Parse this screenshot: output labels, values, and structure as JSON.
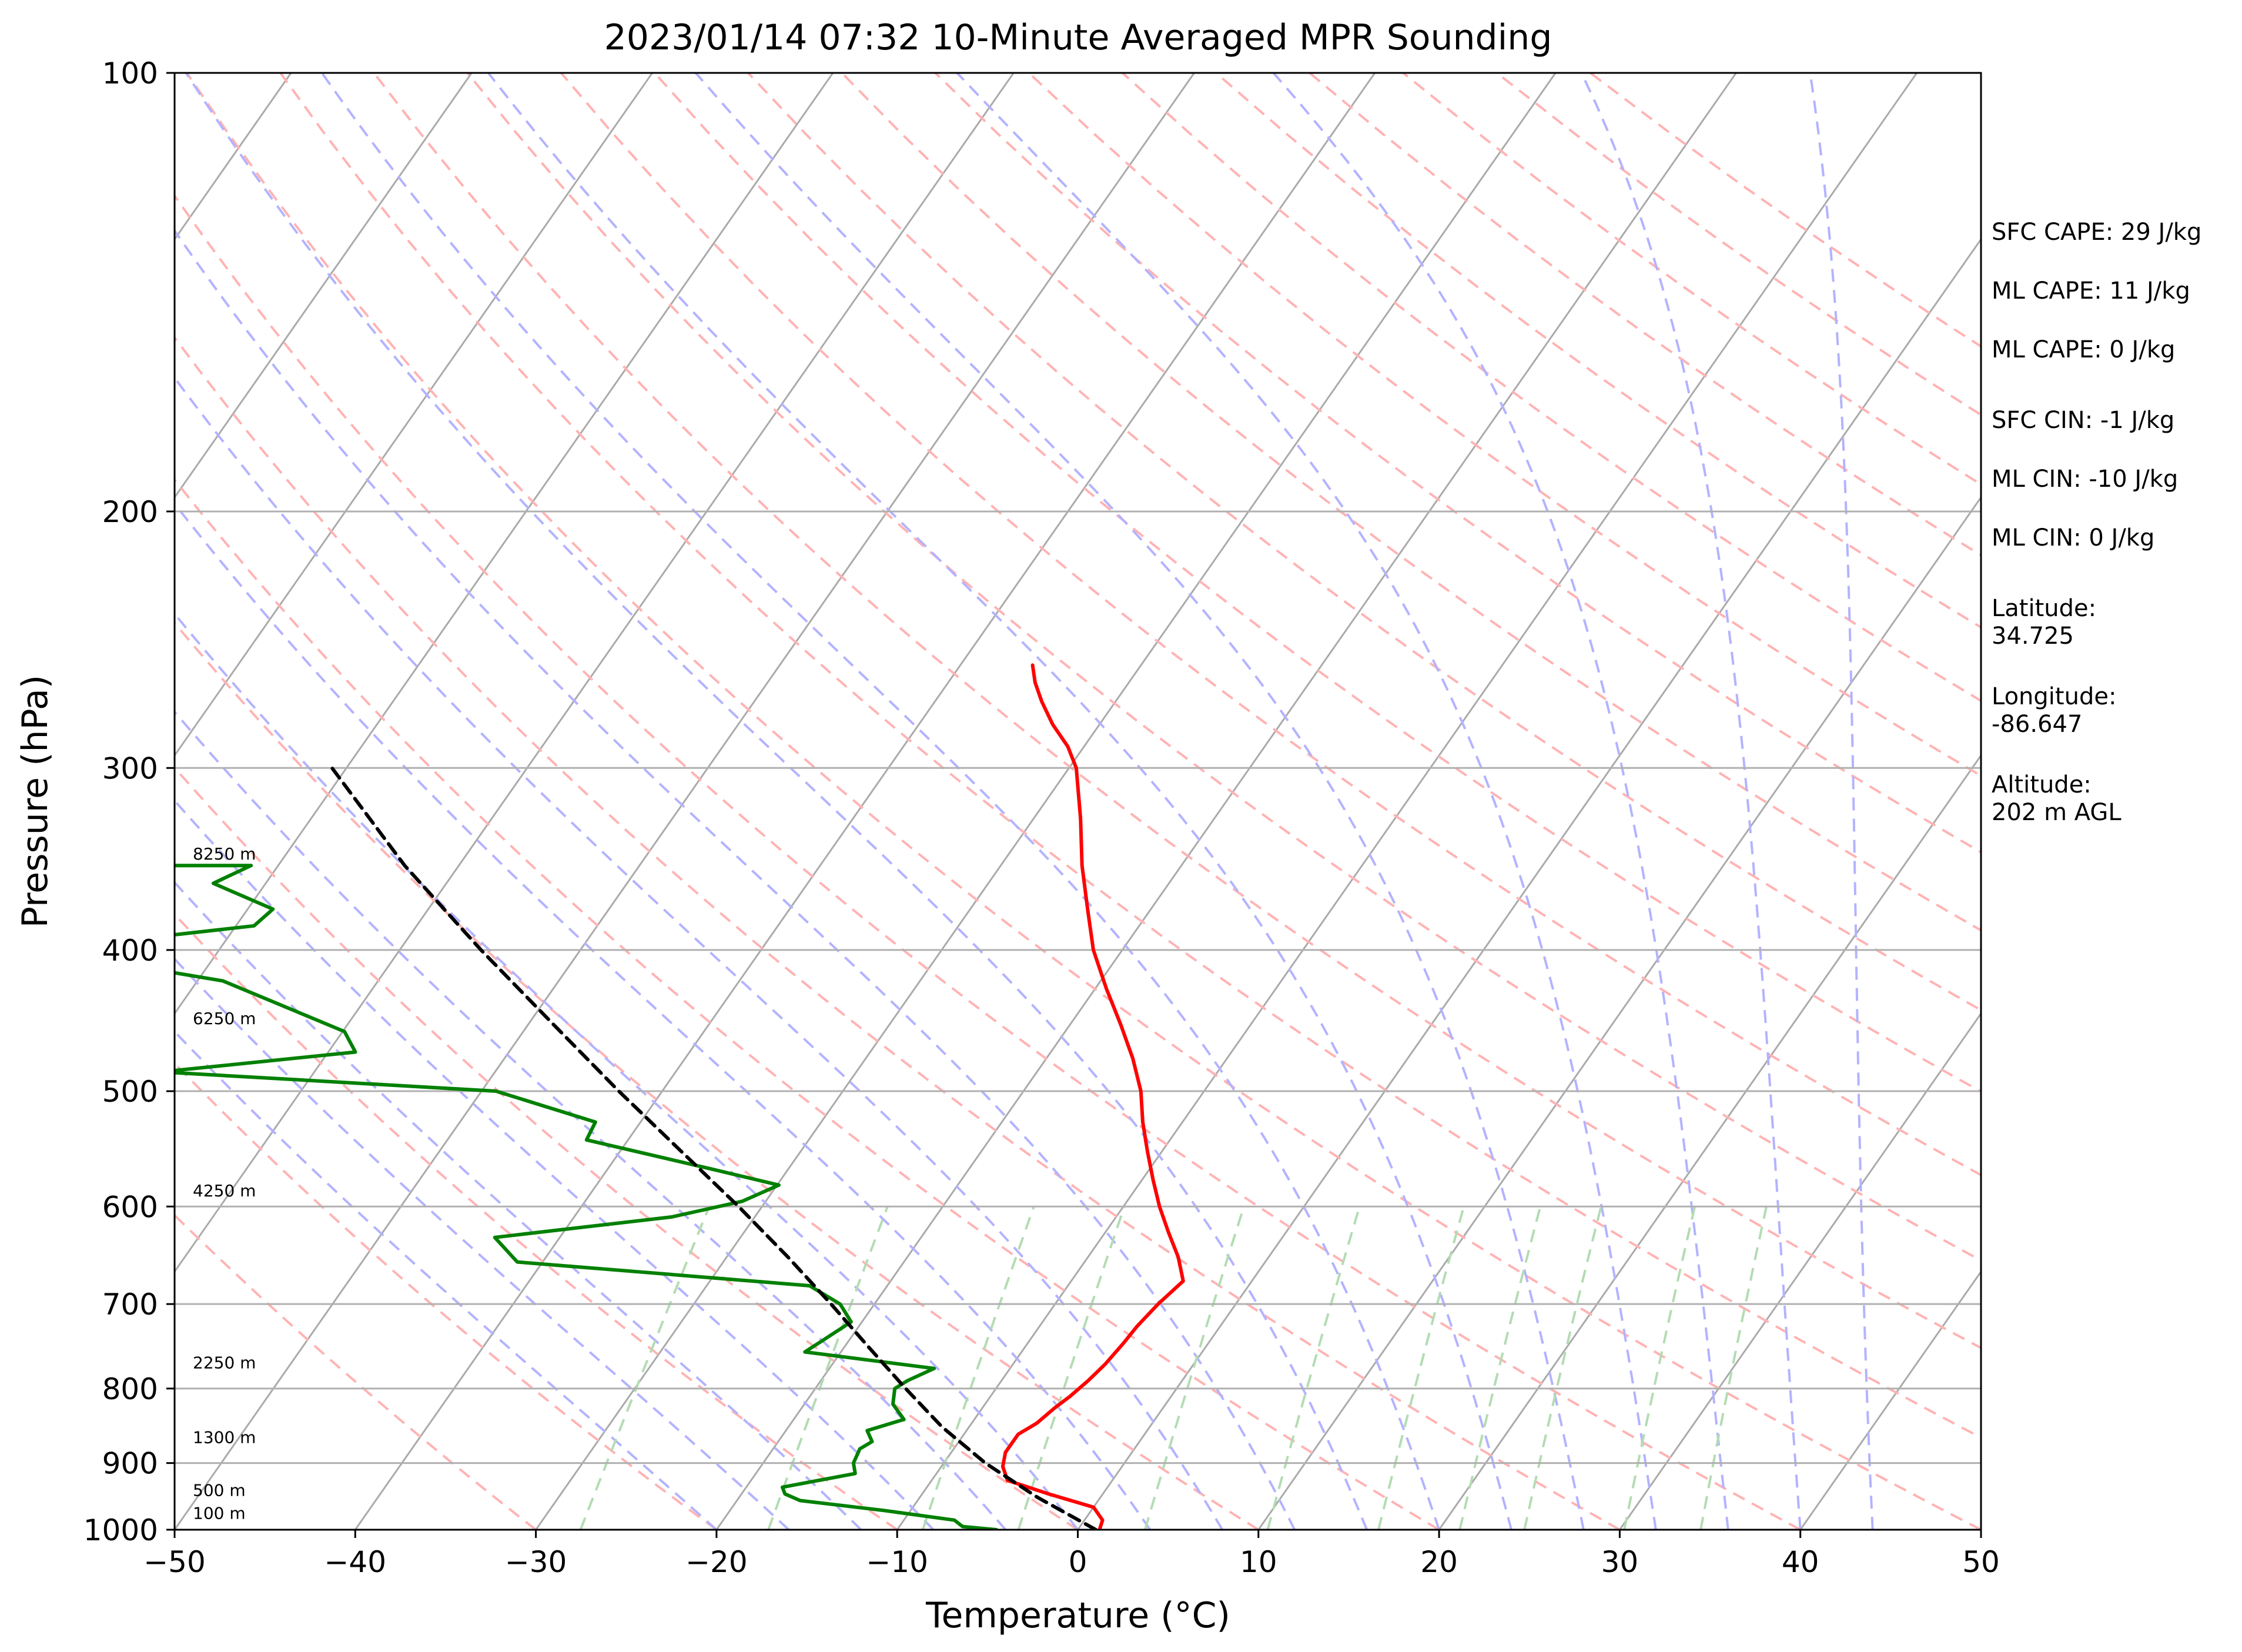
{
  "chart_data": {
    "type": "line",
    "title": "2023/01/14 07:32 10-Minute Averaged MPR Sounding",
    "xlabel": "Temperature (°C)",
    "ylabel": "Pressure (hPa)",
    "x_scale": "linear",
    "y_scale": "log",
    "y_inverted": true,
    "xlim": [
      -50,
      50
    ],
    "ylim": [
      1000,
      100
    ],
    "skew": true,
    "x_ticks": [
      "−50",
      "−40",
      "−30",
      "−20",
      "−10",
      "0",
      "10",
      "20",
      "30",
      "40",
      "50"
    ],
    "x_tick_values": [
      -50,
      -40,
      -30,
      -20,
      -10,
      0,
      10,
      20,
      30,
      40,
      50
    ],
    "y_ticks": [
      "1000",
      "900",
      "800",
      "700",
      "600",
      "500",
      "400",
      "300",
      "200",
      "100"
    ],
    "y_tick_values": [
      1000,
      900,
      800,
      700,
      600,
      500,
      400,
      300,
      200,
      100
    ],
    "grid": true,
    "series": [
      {
        "role": "temperature",
        "color": "#ff0000",
        "points": [
          {
            "p": 1000,
            "t": 1.2
          },
          {
            "p": 985,
            "t": 1.0
          },
          {
            "p": 965,
            "t": 0.0
          },
          {
            "p": 945,
            "t": -3.0
          },
          {
            "p": 925,
            "t": -5.8
          },
          {
            "p": 905,
            "t": -6.6
          },
          {
            "p": 885,
            "t": -7.0
          },
          {
            "p": 860,
            "t": -7.0
          },
          {
            "p": 845,
            "t": -6.4
          },
          {
            "p": 825,
            "t": -6.0
          },
          {
            "p": 810,
            "t": -5.6
          },
          {
            "p": 790,
            "t": -5.2
          },
          {
            "p": 770,
            "t": -4.9
          },
          {
            "p": 745,
            "t": -4.7
          },
          {
            "p": 725,
            "t": -4.6
          },
          {
            "p": 700,
            "t": -4.3
          },
          {
            "p": 675,
            "t": -3.8
          },
          {
            "p": 650,
            "t": -5.0
          },
          {
            "p": 625,
            "t": -6.5
          },
          {
            "p": 600,
            "t": -8.0
          },
          {
            "p": 575,
            "t": -9.4
          },
          {
            "p": 550,
            "t": -10.8
          },
          {
            "p": 525,
            "t": -12.2
          },
          {
            "p": 500,
            "t": -13.5
          },
          {
            "p": 475,
            "t": -15.2
          },
          {
            "p": 450,
            "t": -17.2
          },
          {
            "p": 425,
            "t": -19.4
          },
          {
            "p": 400,
            "t": -21.6
          },
          {
            "p": 375,
            "t": -23.5
          },
          {
            "p": 350,
            "t": -25.5
          },
          {
            "p": 325,
            "t": -27.4
          },
          {
            "p": 300,
            "t": -29.6
          },
          {
            "p": 290,
            "t": -30.9
          },
          {
            "p": 280,
            "t": -32.6
          },
          {
            "p": 270,
            "t": -34.1
          },
          {
            "p": 262,
            "t": -35.2
          },
          {
            "p": 255,
            "t": -36.0
          }
        ]
      },
      {
        "role": "dewpoint",
        "color": "#008000",
        "points": [
          {
            "p": 1000,
            "t": -4.5
          },
          {
            "p": 995,
            "t": -6.5
          },
          {
            "p": 985,
            "t": -7.2
          },
          {
            "p": 970,
            "t": -11.5
          },
          {
            "p": 955,
            "t": -16.5
          },
          {
            "p": 945,
            "t": -17.6
          },
          {
            "p": 935,
            "t": -18.0
          },
          {
            "p": 915,
            "t": -14.5
          },
          {
            "p": 900,
            "t": -15.0
          },
          {
            "p": 880,
            "t": -15.2
          },
          {
            "p": 870,
            "t": -14.8
          },
          {
            "p": 855,
            "t": -15.5
          },
          {
            "p": 840,
            "t": -13.9
          },
          {
            "p": 820,
            "t": -15.1
          },
          {
            "p": 800,
            "t": -15.6
          },
          {
            "p": 790,
            "t": -15.2
          },
          {
            "p": 775,
            "t": -14.2
          },
          {
            "p": 755,
            "t": -22.0
          },
          {
            "p": 740,
            "t": -21.4
          },
          {
            "p": 720,
            "t": -20.6
          },
          {
            "p": 700,
            "t": -21.9
          },
          {
            "p": 680,
            "t": -24.3
          },
          {
            "p": 655,
            "t": -41.4
          },
          {
            "p": 630,
            "t": -43.6
          },
          {
            "p": 610,
            "t": -34.6
          },
          {
            "p": 595,
            "t": -31.3
          },
          {
            "p": 580,
            "t": -29.9
          },
          {
            "p": 565,
            "t": -34.4
          },
          {
            "p": 540,
            "t": -42.3
          },
          {
            "p": 525,
            "t": -42.5
          },
          {
            "p": 500,
            "t": -49.2
          },
          {
            "p": 485,
            "t": -68.5
          },
          {
            "p": 470,
            "t": -58.5
          },
          {
            "p": 455,
            "t": -59.9
          },
          {
            "p": 420,
            "t": -68.6
          },
          {
            "p": 400,
            "t": -80.0
          },
          {
            "p": 385,
            "t": -69.0
          },
          {
            "p": 375,
            "t": -68.6
          },
          {
            "p": 360,
            "t": -72.9
          },
          {
            "p": 350,
            "t": -71.5
          },
          {
            "p": 350,
            "t": -89.7
          }
        ]
      },
      {
        "role": "parcel",
        "color": "#000000",
        "points": [
          {
            "p": 1000,
            "t": 1.0
          },
          {
            "p": 950,
            "t": -3.5
          },
          {
            "p": 900,
            "t": -7.7
          },
          {
            "p": 850,
            "t": -11.5
          },
          {
            "p": 800,
            "t": -15.0
          },
          {
            "p": 750,
            "t": -18.6
          },
          {
            "p": 700,
            "t": -22.4
          },
          {
            "p": 650,
            "t": -26.6
          },
          {
            "p": 600,
            "t": -31.3
          },
          {
            "p": 550,
            "t": -36.6
          },
          {
            "p": 500,
            "t": -42.4
          },
          {
            "p": 450,
            "t": -48.6
          },
          {
            "p": 400,
            "t": -55.5
          },
          {
            "p": 350,
            "t": -63.0
          },
          {
            "p": 300,
            "t": -70.8
          }
        ]
      }
    ],
    "height_labels": [
      {
        "p": 350,
        "text": "8250 m"
      },
      {
        "p": 454,
        "text": "6250 m"
      },
      {
        "p": 596,
        "text": "4250 m"
      },
      {
        "p": 782,
        "text": "2250 m"
      },
      {
        "p": 880,
        "text": "1300 m"
      },
      {
        "p": 957,
        "text": "500 m"
      },
      {
        "p": 992,
        "text": "100 m"
      }
    ],
    "background_lines": {
      "isotherm_color": "#aaaaaa",
      "dry_adiabat_color": "#ffb3b3",
      "moist_adiabat_color": "#b3b3ff",
      "mixing_ratio_color": "#b3dcb3"
    }
  },
  "info": {
    "sfc_cape": "SFC CAPE: 29 J/kg",
    "ml_cape": "ML CAPE: 11 J/kg",
    "ml_cape2": "ML CAPE: 0 J/kg",
    "sfc_cin": "SFC CIN: -1 J/kg",
    "ml_cin": "ML CIN: -10 J/kg",
    "ml_cin2": "ML CIN: 0 J/kg",
    "latitude_label": "Latitude:",
    "latitude_value": "34.725",
    "longitude_label": "Longitude:",
    "longitude_value": "-86.647",
    "altitude_label": "Altitude:",
    "altitude_value": "202 m AGL"
  }
}
